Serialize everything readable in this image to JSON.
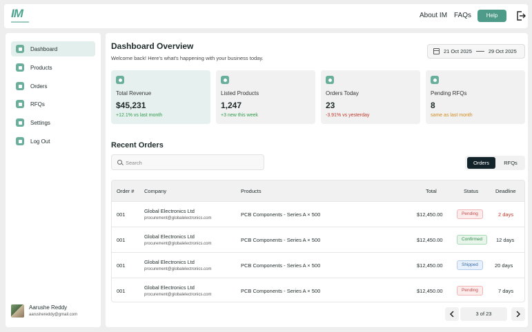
{
  "header": {
    "logo_text": "IM",
    "nav": [
      "About IM",
      "FAQs"
    ],
    "help_label": "Help"
  },
  "sidebar": {
    "items": [
      {
        "label": "Dashboard",
        "active": true
      },
      {
        "label": "Products",
        "active": false
      },
      {
        "label": "Orders",
        "active": false
      },
      {
        "label": "RFQs",
        "active": false
      },
      {
        "label": "Settings",
        "active": false
      },
      {
        "label": "Log Out",
        "active": false
      }
    ],
    "user": {
      "name": "Aarushe Reddy",
      "email": "aarushereddy@gmail.com"
    }
  },
  "main": {
    "title": "Dashboard Overview",
    "subtitle": "Welcome back! Here's what's happening with your business today.",
    "date_range": {
      "start": "21 Oct 2025",
      "end": "29 Oct 2025"
    },
    "stats": [
      {
        "label": "Total Revenue",
        "value": "$45,231",
        "delta": "+12.1% vs last month",
        "tone": "positive"
      },
      {
        "label": "Listed Products",
        "value": "1,247",
        "delta": "+3 new this week",
        "tone": "positive"
      },
      {
        "label": "Orders Today",
        "value": "23",
        "delta": "-3.91% vs yesterday",
        "tone": "negative"
      },
      {
        "label": "Pending RFQs",
        "value": "8",
        "delta": "same as last month",
        "tone": "neutral"
      }
    ],
    "recent_orders": {
      "title": "Recent Orders",
      "search_placeholder": "Search",
      "toggle": [
        "Orders",
        "RFQs"
      ],
      "columns": [
        "Order #",
        "Company",
        "Products",
        "Total",
        "Status",
        "Deadline"
      ],
      "rows": [
        {
          "order": "001",
          "company": "Global Electronics Ltd",
          "email": "procurement@globalelectronics.com",
          "product": "PCB Components - Series A × 500",
          "total": "$12,450.00",
          "status": "Pending",
          "deadline": "2 days"
        },
        {
          "order": "001",
          "company": "Global Electronics Ltd",
          "email": "procurement@globalelectronics.com",
          "product": "PCB Components - Series A × 500",
          "total": "$12,450.00",
          "status": "Confirmed",
          "deadline": "12 days"
        },
        {
          "order": "001",
          "company": "Global Electronics Ltd",
          "email": "procurement@globalelectronics.com",
          "product": "PCB Components - Series A × 500",
          "total": "$12,450.00",
          "status": "Shipped",
          "deadline": "20 days"
        },
        {
          "order": "001",
          "company": "Global Electronics Ltd",
          "email": "procurement@globalelectronics.com",
          "product": "PCB Components - Series A × 500",
          "total": "$12,450.00",
          "status": "Pending",
          "deadline": "7 days"
        }
      ],
      "pagination": "3 of 23"
    }
  },
  "colors": {
    "accent": "#4d9b88",
    "positive": "#2f9a4a",
    "negative": "#c0392b",
    "neutral": "#d28b1f",
    "deadline_urgent": "#c0392b"
  }
}
